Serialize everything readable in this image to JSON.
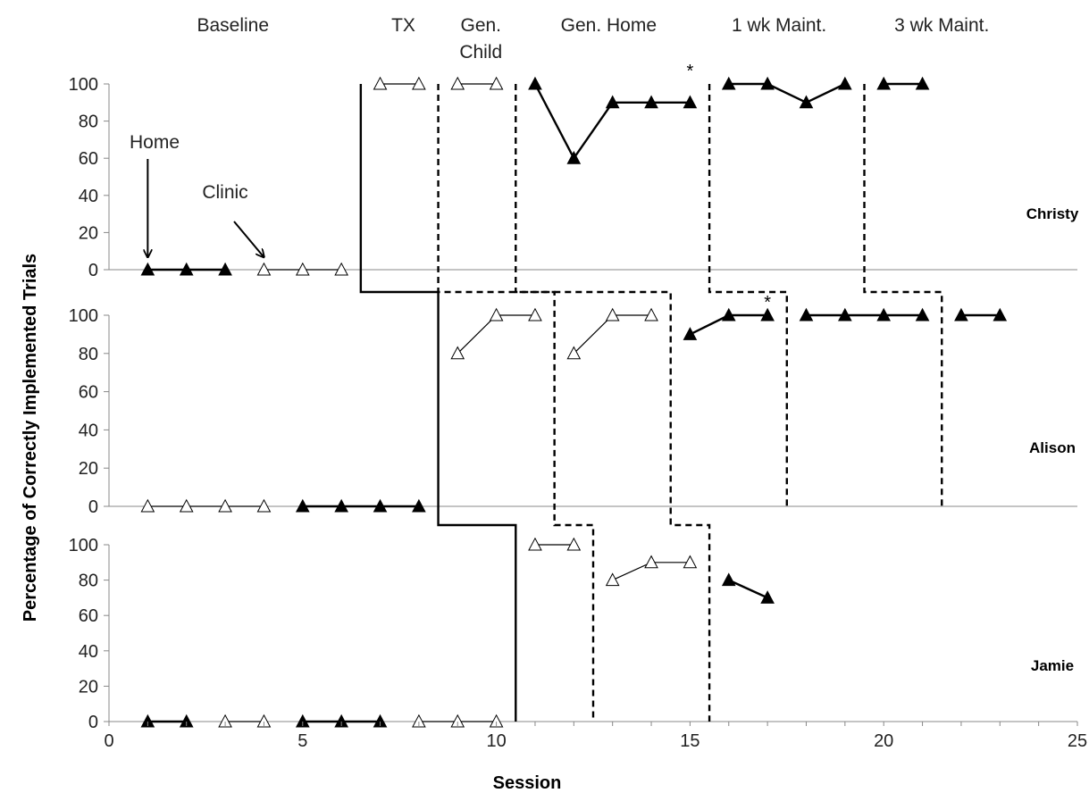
{
  "chart_data": {
    "type": "line",
    "ylabel": "Percentage of Correctly Implemented Trials",
    "xlabel": "Session",
    "xlim": [
      0,
      25
    ],
    "xticks": [
      "0",
      "5",
      "10",
      "15",
      "20",
      "25"
    ],
    "ylim": [
      0,
      100
    ],
    "yticks": [
      "0",
      "20",
      "40",
      "60",
      "80",
      "100"
    ],
    "grid": false,
    "phases": [
      {
        "id": "baseline",
        "lines": [
          "Baseline"
        ],
        "x": 3.2
      },
      {
        "id": "tx",
        "lines": [
          "TX"
        ],
        "x": 7.6
      },
      {
        "id": "gen-child",
        "lines": [
          "Gen.",
          "Child"
        ],
        "x": 9.6
      },
      {
        "id": "gen-home",
        "lines": [
          "Gen. Home"
        ],
        "x": 12.9
      },
      {
        "id": "maint-1wk",
        "lines": [
          "1 wk Maint."
        ],
        "x": 17.3
      },
      {
        "id": "maint-3wk",
        "lines": [
          "3 wk Maint."
        ],
        "x": 21.5
      }
    ],
    "panels": [
      {
        "name": "Christy",
        "series": [
          {
            "style": "filled",
            "segments": [
              [
                [
                  1,
                  0
                ],
                [
                  2,
                  0
                ],
                [
                  3,
                  0
                ]
              ],
              [
                [
                  11,
                  100
                ],
                [
                  12,
                  60
                ],
                [
                  13,
                  90
                ],
                [
                  14,
                  90
                ],
                [
                  15,
                  90
                ]
              ],
              [
                [
                  16,
                  100
                ],
                [
                  17,
                  100
                ],
                [
                  18,
                  90
                ],
                [
                  19,
                  100
                ]
              ],
              [
                [
                  20,
                  100
                ],
                [
                  21,
                  100
                ]
              ]
            ]
          },
          {
            "style": "open",
            "segments": [
              [
                [
                  4,
                  0
                ],
                [
                  5,
                  0
                ],
                [
                  6,
                  0
                ]
              ],
              [
                [
                  7,
                  100
                ],
                [
                  8,
                  100
                ]
              ],
              [
                [
                  9,
                  100
                ],
                [
                  10,
                  100
                ]
              ]
            ]
          }
        ],
        "asterisks": [
          {
            "x": 15,
            "y": 100
          }
        ]
      },
      {
        "name": "Alison",
        "series": [
          {
            "style": "open",
            "segments": [
              [
                [
                  1,
                  0
                ],
                [
                  2,
                  0
                ],
                [
                  3,
                  0
                ],
                [
                  4,
                  0
                ]
              ],
              [
                [
                  9,
                  80
                ],
                [
                  10,
                  100
                ],
                [
                  11,
                  100
                ]
              ],
              [
                [
                  12,
                  80
                ],
                [
                  13,
                  100
                ],
                [
                  14,
                  100
                ]
              ]
            ]
          },
          {
            "style": "filled",
            "segments": [
              [
                [
                  5,
                  0
                ],
                [
                  6,
                  0
                ],
                [
                  7,
                  0
                ],
                [
                  8,
                  0
                ]
              ],
              [
                [
                  15,
                  90
                ],
                [
                  16,
                  100
                ],
                [
                  17,
                  100
                ]
              ],
              [
                [
                  18,
                  100
                ],
                [
                  19,
                  100
                ],
                [
                  20,
                  100
                ],
                [
                  21,
                  100
                ]
              ],
              [
                [
                  22,
                  100
                ],
                [
                  23,
                  100
                ]
              ]
            ]
          }
        ],
        "asterisks": [
          {
            "x": 17,
            "y": 100
          }
        ]
      },
      {
        "name": "Jamie",
        "series": [
          {
            "style": "filled",
            "segments": [
              [
                [
                  1,
                  0
                ],
                [
                  2,
                  0
                ]
              ],
              [
                [
                  5,
                  0
                ],
                [
                  6,
                  0
                ],
                [
                  7,
                  0
                ]
              ],
              [
                [
                  16,
                  80
                ],
                [
                  17,
                  70
                ]
              ]
            ]
          },
          {
            "style": "open",
            "segments": [
              [
                [
                  3,
                  0
                ],
                [
                  4,
                  0
                ]
              ],
              [
                [
                  8,
                  0
                ],
                [
                  9,
                  0
                ],
                [
                  10,
                  0
                ]
              ],
              [
                [
                  11,
                  100
                ],
                [
                  12,
                  100
                ]
              ],
              [
                [
                  13,
                  80
                ],
                [
                  14,
                  90
                ],
                [
                  15,
                  90
                ]
              ]
            ]
          }
        ],
        "asterisks": []
      }
    ],
    "annotations": [
      {
        "id": "home",
        "text": "Home",
        "points_to": {
          "panel": 0,
          "x": 1,
          "y": 0
        }
      },
      {
        "id": "clinic",
        "text": "Clinic",
        "points_to": {
          "panel": 0,
          "x": 4,
          "y": 0
        }
      }
    ],
    "phase_change_lines": [
      {
        "style": "solid",
        "path": [
          {
            "panel": 0,
            "x": 6.5
          },
          {
            "panel": 1,
            "x": 8.5
          },
          {
            "panel": 2,
            "x": 10.5
          }
        ]
      },
      {
        "style": "dashed",
        "path": [
          {
            "panel": 0,
            "x": 8.5
          },
          {
            "panel": 1,
            "x": 11.5
          },
          {
            "panel": 2,
            "x": 12.5
          }
        ]
      },
      {
        "style": "dashed",
        "path": [
          {
            "panel": 0,
            "x": 10.5
          },
          {
            "panel": 1,
            "x": 14.5
          },
          {
            "panel": 2,
            "x": 15.5
          }
        ]
      },
      {
        "style": "dashed",
        "path": [
          {
            "panel": 0,
            "x": 15.5
          },
          {
            "panel": 1,
            "x": 17.5
          }
        ]
      },
      {
        "style": "dashed",
        "path": [
          {
            "panel": 0,
            "x": 19.5
          },
          {
            "panel": 1,
            "x": 21.5
          }
        ]
      }
    ]
  }
}
